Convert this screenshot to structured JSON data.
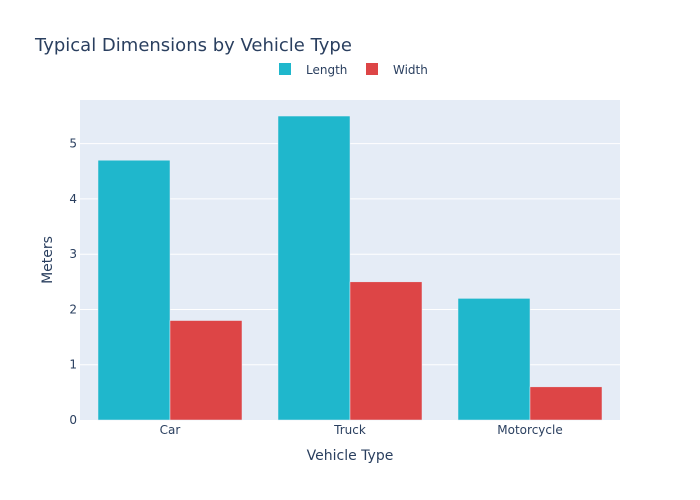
{
  "chart_data": {
    "type": "bar",
    "title": "Typical Dimensions by Vehicle Type",
    "xlabel": "Vehicle Type",
    "ylabel": "Meters",
    "categories": [
      "Car",
      "Truck",
      "Motorcycle"
    ],
    "series": [
      {
        "name": "Length",
        "values": [
          4.7,
          5.5,
          2.2
        ],
        "color": "#1fb7cc"
      },
      {
        "name": "Width",
        "values": [
          1.8,
          2.5,
          0.6
        ],
        "color": "#dd4546"
      }
    ],
    "ylim": [
      0,
      5.79
    ],
    "yticks": [
      0,
      1,
      2,
      3,
      4,
      5
    ],
    "grid": true,
    "legend_position": "top",
    "plot_bg": "#e5ecf6"
  }
}
